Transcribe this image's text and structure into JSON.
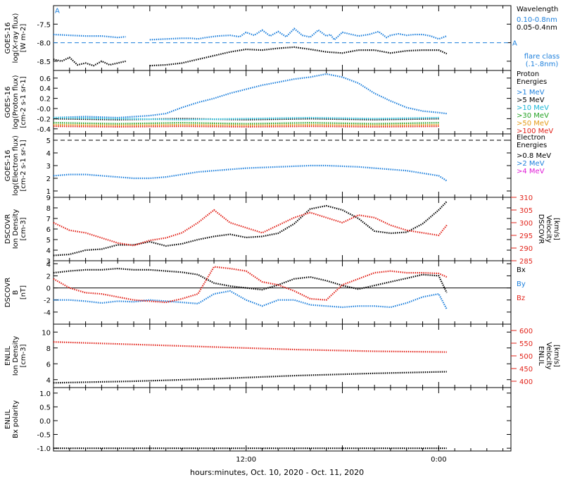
{
  "colors": {
    "black": "#000000",
    "blue": "#1c7fdc",
    "cyan": "#19b7d6",
    "green": "#23a223",
    "orange": "#e49a16",
    "red": "#e2231a",
    "magenta": "#e01ad6"
  },
  "x_axis": {
    "label": "hours:minutes, Oct. 10, 2020 - Oct. 11, 2020",
    "ticks": [
      "12:00",
      "0:00"
    ]
  },
  "chart_data": [
    {
      "type": "line",
      "ylabel": "GOES-16\nlog(X-ray flux)\n[W m-2]",
      "ylim": [
        -8.75,
        -7.0
      ],
      "yticks": [
        "-7.5",
        "-8.0",
        "-8.5"
      ],
      "legend_title": "Wavelength",
      "legend": [
        {
          "text": "0.10-0.8nm",
          "color": "#1c7fdc"
        },
        {
          "text": "0.05-0.4nm",
          "color": "#000000"
        }
      ],
      "flare_class": {
        "label": "flare class\n(.1-.8nm)",
        "marker": "A",
        "level": -8.0
      },
      "series": [
        {
          "name": "0.10-0.8nm",
          "color": "#1c7fdc",
          "x": [
            0,
            2,
            4,
            6,
            8,
            9,
            10,
            12,
            14,
            16,
            17.2,
            18,
            19,
            20.5,
            22,
            23.2,
            24,
            25,
            26,
            27,
            28,
            29,
            30,
            31,
            32,
            33,
            34,
            34.5,
            35,
            36,
            38,
            39.3,
            40.5,
            41.5,
            42,
            43,
            44,
            45,
            46,
            47,
            48,
            49
          ],
          "y": [
            -7.78,
            -7.8,
            -7.82,
            -7.82,
            -7.86,
            -7.84,
            null,
            -7.92,
            -7.9,
            -7.88,
            -7.88,
            -7.9,
            -7.86,
            -7.82,
            -7.8,
            -7.84,
            -7.72,
            -7.8,
            -7.66,
            -7.82,
            -7.7,
            -7.84,
            -7.62,
            -7.8,
            -7.85,
            -7.66,
            -7.82,
            -7.78,
            -7.92,
            -7.72,
            -7.82,
            -7.78,
            -7.7,
            -7.86,
            -7.8,
            -7.76,
            -7.8,
            -7.78,
            -7.78,
            -7.82,
            -7.9,
            -7.82
          ]
        },
        {
          "name": "0.05-0.4nm",
          "color": "#000000",
          "x": [
            0,
            1,
            2,
            3,
            4,
            5,
            6,
            7,
            8,
            9,
            10,
            12,
            14,
            16,
            18,
            20,
            22,
            24,
            26,
            28,
            30,
            32,
            34,
            36,
            38,
            40,
            42,
            44,
            46,
            48,
            49
          ],
          "y": [
            -8.45,
            -8.5,
            -8.4,
            -8.6,
            -8.55,
            -8.62,
            -8.5,
            -8.6,
            -8.55,
            -8.5,
            null,
            -8.62,
            -8.6,
            -8.55,
            -8.45,
            -8.35,
            -8.25,
            -8.18,
            -8.2,
            -8.15,
            -8.12,
            -8.18,
            -8.25,
            -8.28,
            -8.2,
            -8.2,
            -8.28,
            -8.22,
            -8.2,
            -8.2,
            -8.3
          ]
        }
      ]
    },
    {
      "type": "scatter",
      "ylabel": "GOES-16\nlog(Proton flux)\n[cm-2 s-1 sr-1]",
      "ylim": [
        -0.5,
        0.75
      ],
      "yticks": [
        "0.6",
        "0.4",
        "0.2",
        "-0.0",
        "-0.2",
        "-0.4"
      ],
      "legend_title": "Proton\nEnergies",
      "legend": [
        {
          "text": ">1 MeV",
          "color": "#1c7fdc"
        },
        {
          "text": ">5 MeV",
          "color": "#000000"
        },
        {
          "text": ">10 MeV",
          "color": "#19b7d6"
        },
        {
          "text": ">30 MeV",
          "color": "#23a223"
        },
        {
          "text": ">50 MeV",
          "color": "#e49a16"
        },
        {
          "text": ">100 MeV",
          "color": "#e2231a"
        }
      ],
      "series": [
        {
          "name": ">1 MeV",
          "color": "#1c7fdc",
          "x": [
            0,
            4,
            8,
            12,
            14,
            16,
            18,
            20,
            22,
            24,
            26,
            28,
            30,
            32,
            34,
            36,
            38,
            40,
            42,
            44,
            46,
            48,
            49
          ],
          "y": [
            -0.18,
            -0.16,
            -0.18,
            -0.14,
            -0.1,
            0.02,
            0.12,
            0.2,
            0.3,
            0.38,
            0.46,
            0.52,
            0.58,
            0.62,
            0.68,
            0.62,
            0.5,
            0.3,
            0.15,
            0.02,
            -0.05,
            -0.08,
            -0.1
          ]
        },
        {
          "name": ">5 MeV",
          "color": "#000000",
          "x": [
            0,
            8,
            16,
            24,
            32,
            40,
            48
          ],
          "y": [
            -0.2,
            -0.22,
            -0.2,
            -0.22,
            -0.2,
            -0.22,
            -0.2
          ]
        },
        {
          "name": ">10 MeV",
          "color": "#19b7d6",
          "x": [
            0,
            8,
            16,
            24,
            32,
            40,
            48
          ],
          "y": [
            -0.18,
            -0.2,
            -0.22,
            -0.2,
            -0.18,
            -0.2,
            -0.18
          ]
        },
        {
          "name": ">30 MeV",
          "color": "#23a223",
          "x": [
            0,
            8,
            16,
            24,
            32,
            40,
            48
          ],
          "y": [
            -0.28,
            -0.3,
            -0.28,
            -0.3,
            -0.28,
            -0.3,
            -0.28
          ]
        },
        {
          "name": ">50 MeV",
          "color": "#e49a16",
          "x": [
            0,
            8,
            16,
            24,
            32,
            40,
            48
          ],
          "y": [
            -0.32,
            -0.33,
            -0.32,
            -0.33,
            -0.32,
            -0.33,
            -0.32
          ]
        },
        {
          "name": ">100 MeV",
          "color": "#e2231a",
          "x": [
            0,
            8,
            16,
            24,
            32,
            40,
            48
          ],
          "y": [
            -0.35,
            -0.36,
            -0.35,
            -0.36,
            -0.35,
            -0.36,
            -0.35
          ]
        }
      ]
    },
    {
      "type": "scatter",
      "ylabel": "GOES-16\nlog(Electron flux)\n[cm-2 s-1 sr-1]",
      "ylim": [
        0.5,
        5.5
      ],
      "yticks": [
        "5",
        "4",
        "3",
        "2",
        "1"
      ],
      "dashed_line": 5.0,
      "legend_title": "Electron\nEnergies",
      "legend": [
        {
          "text": ">0.8 MeV",
          "color": "#000000"
        },
        {
          "text": ">2 MeV",
          "color": "#1c7fdc"
        },
        {
          "text": ">4 MeV",
          "color": "#e01ad6"
        }
      ],
      "series": [
        {
          "name": ">2 MeV",
          "color": "#1c7fdc",
          "x": [
            0,
            2,
            4,
            6,
            8,
            10,
            12,
            14,
            16,
            18,
            20,
            22,
            24,
            26,
            28,
            30,
            32,
            34,
            36,
            38,
            40,
            42,
            44,
            46,
            48,
            49
          ],
          "y": [
            2.2,
            2.3,
            2.3,
            2.2,
            2.1,
            2.0,
            2.0,
            2.1,
            2.3,
            2.5,
            2.6,
            2.7,
            2.8,
            2.85,
            2.9,
            2.95,
            3.0,
            3.0,
            2.95,
            2.9,
            2.8,
            2.7,
            2.6,
            2.4,
            2.2,
            1.8
          ]
        }
      ]
    },
    {
      "type": "scatter",
      "ylabel": "DSCOVR\nIon Density\n[cm-3]",
      "ylim": [
        3,
        9
      ],
      "yticks": [
        "9",
        "8",
        "7",
        "6",
        "5",
        "4",
        "3"
      ],
      "y2label": "DSCOVR\nVelocity\n[km/s]",
      "y2lim": [
        285,
        310
      ],
      "y2ticks": [
        "310",
        "305",
        "300",
        "295",
        "290",
        "285"
      ],
      "series": [
        {
          "name": "Ion Density",
          "color": "#000000",
          "axis": "left",
          "x": [
            0,
            2,
            4,
            6,
            8,
            10,
            12,
            14,
            16,
            18,
            20,
            22,
            24,
            26,
            28,
            30,
            32,
            34,
            36,
            38,
            40,
            42,
            44,
            46,
            48,
            49
          ],
          "y": [
            3.5,
            3.6,
            4.0,
            4.1,
            4.5,
            4.5,
            4.8,
            4.4,
            4.6,
            5.0,
            5.3,
            5.5,
            5.2,
            5.3,
            5.6,
            6.5,
            7.9,
            8.2,
            7.8,
            7.0,
            5.8,
            5.6,
            5.7,
            6.5,
            7.8,
            8.6
          ]
        },
        {
          "name": "Velocity",
          "color": "#e2231a",
          "axis": "right",
          "x": [
            0,
            2,
            4,
            6,
            8,
            10,
            12,
            14,
            16,
            18,
            20,
            22,
            24,
            26,
            28,
            30,
            32,
            34,
            36,
            38,
            40,
            42,
            44,
            46,
            48,
            49
          ],
          "y": [
            300,
            297,
            296,
            294,
            292,
            291,
            293,
            294,
            296,
            300,
            305,
            300,
            298,
            296,
            299,
            302,
            304,
            302,
            300,
            303,
            302,
            299,
            297,
            296,
            295,
            299
          ]
        }
      ]
    },
    {
      "type": "line",
      "ylabel": "DSCOVR\nB\n[nT]",
      "ylim": [
        -6,
        4.5
      ],
      "yticks": [
        "4",
        "2",
        "0",
        "-2",
        "-4"
      ],
      "zero_line": 0,
      "legend": [
        {
          "text": "Bx",
          "color": "#000000"
        },
        {
          "text": "By",
          "color": "#1c7fdc"
        },
        {
          "text": "Bz",
          "color": "#e2231a"
        }
      ],
      "series": [
        {
          "name": "Bx",
          "color": "#000000",
          "x": [
            0,
            2,
            4,
            6,
            8,
            10,
            12,
            14,
            16,
            18,
            20,
            22,
            24,
            26,
            28,
            30,
            32,
            34,
            36,
            38,
            40,
            42,
            44,
            46,
            48,
            49
          ],
          "y": [
            2.5,
            2.8,
            3.0,
            3.0,
            3.2,
            3.0,
            3.0,
            2.8,
            2.6,
            2.2,
            0.8,
            0.3,
            0.0,
            -0.3,
            0.5,
            1.5,
            1.8,
            1.2,
            0.4,
            -0.2,
            0.4,
            1.0,
            1.6,
            2.2,
            2.0,
            -0.8
          ]
        },
        {
          "name": "By",
          "color": "#1c7fdc",
          "x": [
            0,
            2,
            4,
            6,
            8,
            10,
            12,
            14,
            16,
            18,
            20,
            22,
            24,
            26,
            28,
            30,
            32,
            34,
            36,
            38,
            40,
            42,
            44,
            46,
            48,
            49
          ],
          "y": [
            -2.0,
            -2.0,
            -2.2,
            -2.5,
            -2.2,
            -2.3,
            -2.0,
            -2.2,
            -2.4,
            -2.6,
            -1.0,
            -0.5,
            -2.0,
            -3.0,
            -2.0,
            -2.0,
            -2.8,
            -3.0,
            -3.2,
            -3.0,
            -3.0,
            -3.2,
            -2.5,
            -1.5,
            -1.0,
            -3.5
          ]
        },
        {
          "name": "Bz",
          "color": "#e2231a",
          "x": [
            0,
            2,
            4,
            6,
            8,
            10,
            12,
            14,
            16,
            18,
            20,
            22,
            24,
            26,
            28,
            30,
            32,
            34,
            36,
            38,
            40,
            42,
            44,
            46,
            48,
            49
          ],
          "y": [
            1.5,
            0.0,
            -0.8,
            -1.0,
            -1.5,
            -2.0,
            -2.2,
            -2.4,
            -1.8,
            -1.0,
            3.5,
            3.2,
            2.8,
            1.0,
            0.5,
            -0.5,
            -1.8,
            -2.0,
            0.5,
            1.5,
            2.5,
            2.8,
            2.5,
            2.5,
            2.4,
            1.8
          ]
        }
      ]
    },
    {
      "type": "line",
      "ylabel": "ENLIL\nIon Density\n[cm-3]",
      "ylim": [
        3,
        11
      ],
      "yticks": [
        "10",
        "8",
        "6",
        "4"
      ],
      "y2label": "ENLIL\nVelocity\n[km/s]",
      "y2lim": [
        375,
        625
      ],
      "y2ticks": [
        "600",
        "550",
        "500",
        "450",
        "400"
      ],
      "series": [
        {
          "name": "Ion Density",
          "color": "#000000",
          "axis": "left",
          "x": [
            0,
            10,
            20,
            30,
            40,
            49
          ],
          "y": [
            3.6,
            3.8,
            4.1,
            4.5,
            4.8,
            5.0
          ]
        },
        {
          "name": "Velocity",
          "color": "#e2231a",
          "axis": "right",
          "x": [
            0,
            10,
            20,
            30,
            40,
            49
          ],
          "y": [
            555,
            545,
            535,
            525,
            518,
            515
          ]
        }
      ]
    },
    {
      "type": "line",
      "ylabel": "ENLIL\nBx polarity",
      "ylim": [
        -1.1,
        1.2
      ],
      "yticks": [
        "1.0",
        "0.5",
        "0.0",
        "-0.5",
        "-1.0"
      ],
      "series": [
        {
          "name": "Bx polarity",
          "color": "#000000",
          "x": [
            0,
            49
          ],
          "y": [
            -1.0,
            -1.0
          ]
        }
      ]
    }
  ]
}
